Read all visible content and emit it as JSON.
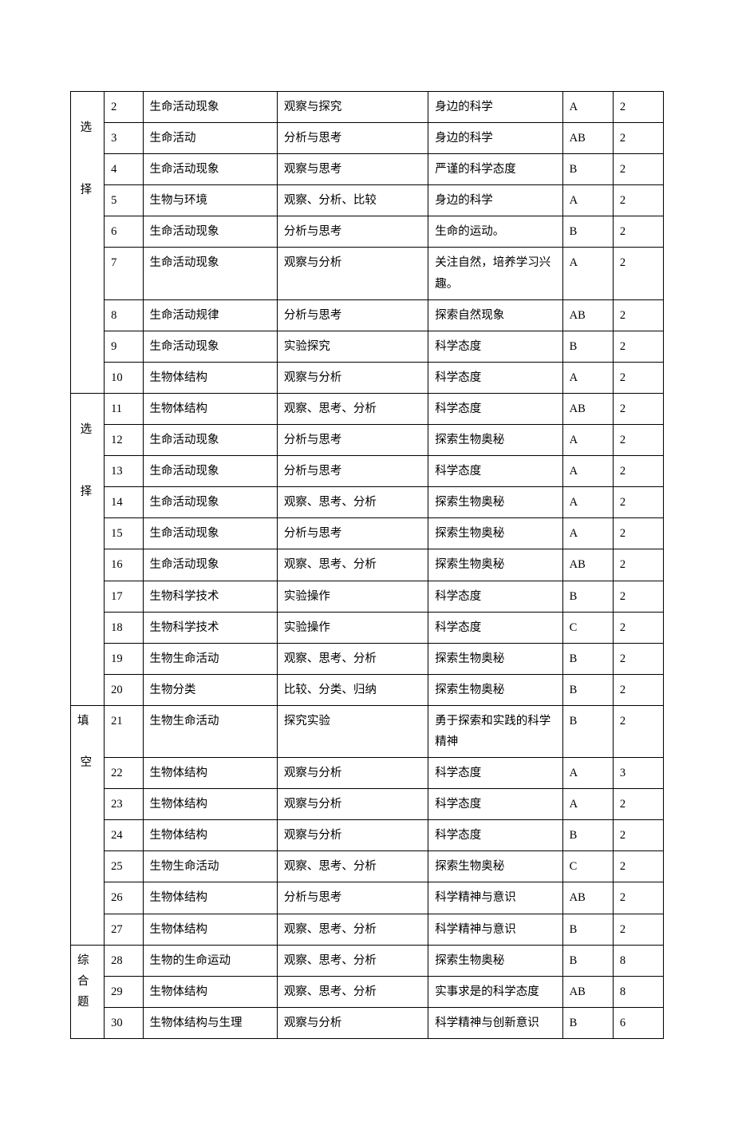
{
  "group_labels": [
    "选",
    "择",
    "选",
    "择",
    "填",
    "空",
    "综合题"
  ],
  "rows": [
    {
      "n": "2",
      "k": "生命活动现象",
      "a": "观察与探究",
      "t": "身边的科学",
      "d": "A",
      "s": "2"
    },
    {
      "n": "3",
      "k": "生命活动",
      "a": "分析与思考",
      "t": "身边的科学",
      "d": "AB",
      "s": "2"
    },
    {
      "n": "4",
      "k": "生命活动现象",
      "a": "观察与思考",
      "t": "严谨的科学态度",
      "d": "B",
      "s": "2"
    },
    {
      "n": "5",
      "k": "生物与环境",
      "a": "观察、分析、比较",
      "t": "身边的科学",
      "d": "A",
      "s": "2"
    },
    {
      "n": "6",
      "k": "生命活动现象",
      "a": "分析与思考",
      "t": "生命的运动。",
      "d": "B",
      "s": "2"
    },
    {
      "n": "7",
      "k": "生命活动现象",
      "a": "观察与分析",
      "t": "关注自然，培养学习兴趣。",
      "d": "A",
      "s": "2"
    },
    {
      "n": "8",
      "k": "生命活动规律",
      "a": "分析与思考",
      "t": "探索自然现象",
      "d": "AB",
      "s": "2"
    },
    {
      "n": "9",
      "k": "生命活动现象",
      "a": "实验探究",
      "t": "科学态度",
      "d": "B",
      "s": "2"
    },
    {
      "n": "10",
      "k": "生物体结构",
      "a": "观察与分析",
      "t": "科学态度",
      "d": "A",
      "s": "2"
    },
    {
      "n": "11",
      "k": "生物体结构",
      "a": "观察、思考、分析",
      "t": "科学态度",
      "d": "AB",
      "s": "2"
    },
    {
      "n": "12",
      "k": "生命活动现象",
      "a": "分析与思考",
      "t": "探索生物奥秘",
      "d": "A",
      "s": "2"
    },
    {
      "n": "13",
      "k": "生命活动现象",
      "a": "分析与思考",
      "t": "科学态度",
      "d": "A",
      "s": "2"
    },
    {
      "n": "14",
      "k": "生命活动现象",
      "a": "观察、思考、分析",
      "t": "探索生物奥秘",
      "d": "A",
      "s": "2"
    },
    {
      "n": "15",
      "k": "生命活动现象",
      "a": "分析与思考",
      "t": "探索生物奥秘",
      "d": "A",
      "s": "2"
    },
    {
      "n": "16",
      "k": "生命活动现象",
      "a": "观察、思考、分析",
      "t": "探索生物奥秘",
      "d": "AB",
      "s": "2"
    },
    {
      "n": "17",
      "k": "生物科学技术",
      "a": "实验操作",
      "t": "科学态度",
      "d": "B",
      "s": "2"
    },
    {
      "n": "18",
      "k": "生物科学技术",
      "a": "实验操作",
      "t": "科学态度",
      "d": "C",
      "s": "2"
    },
    {
      "n": "19",
      "k": "生物生命活动",
      "a": "观察、思考、分析",
      "t": "探索生物奥秘",
      "d": "B",
      "s": "2"
    },
    {
      "n": "20",
      "k": "生物分类",
      "a": "比较、分类、归纳",
      "t": "探索生物奥秘",
      "d": "B",
      "s": "2"
    },
    {
      "n": "21",
      "k": "生物生命活动",
      "a": "探究实验",
      "t": "勇于探索和实践的科学精神",
      "d": "B",
      "s": "2"
    },
    {
      "n": "22",
      "k": "生物体结构",
      "a": "观察与分析",
      "t": "科学态度",
      "d": "A",
      "s": "3"
    },
    {
      "n": "23",
      "k": "生物体结构",
      "a": "观察与分析",
      "t": "科学态度",
      "d": "A",
      "s": "2"
    },
    {
      "n": "24",
      "k": "生物体结构",
      "a": "观察与分析",
      "t": "科学态度",
      "d": "B",
      "s": "2"
    },
    {
      "n": "25",
      "k": "生物生命活动",
      "a": "观察、思考、分析",
      "t": "探索生物奥秘",
      "d": "C",
      "s": "2"
    },
    {
      "n": "26",
      "k": "生物体结构",
      "a": "分析与思考",
      "t": "科学精神与意识",
      "d": "AB",
      "s": "2"
    },
    {
      "n": "27",
      "k": "生物体结构",
      "a": "观察、思考、分析",
      "t": "科学精神与意识",
      "d": "B",
      "s": "2"
    },
    {
      "n": "28",
      "k": "生物的生命运动",
      "a": "观察、思考、分析",
      "t": "探索生物奥秘",
      "d": "B",
      "s": "8"
    },
    {
      "n": "29",
      "k": "生物体结构",
      "a": "观察、思考、分析",
      "t": "实事求是的科学态度",
      "d": "AB",
      "s": "8"
    },
    {
      "n": "30",
      "k": "生物体结构与生理",
      "a": "观察与分析",
      "t": "科学精神与创新意识",
      "d": "B",
      "s": "6"
    }
  ],
  "group_spans": [
    {
      "start": 0,
      "span": 9,
      "labels": [
        {
          "off": 1,
          "text_idx": 0
        },
        {
          "off": 4,
          "text_idx": 1
        }
      ]
    },
    {
      "start": 9,
      "span": 10,
      "labels": [
        {
          "off": 1,
          "text_idx": 2
        },
        {
          "off": 4,
          "text_idx": 3
        }
      ]
    },
    {
      "start": 19,
      "span": 7,
      "labels": [
        {
          "off": 0,
          "text_idx": 4
        },
        {
          "off": 2,
          "text_idx": 5
        }
      ]
    },
    {
      "start": 26,
      "span": 3,
      "labels": [
        {
          "off": 0,
          "text_idx": 6
        }
      ]
    }
  ]
}
